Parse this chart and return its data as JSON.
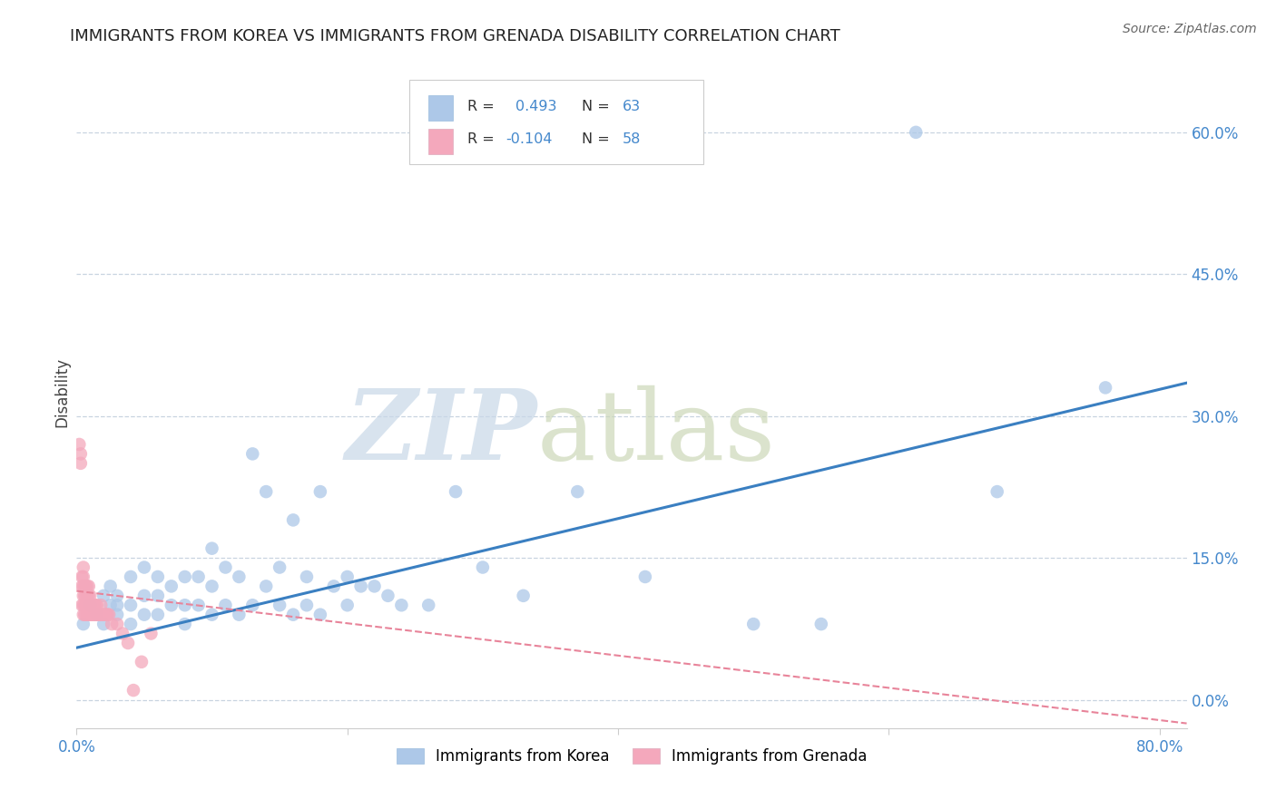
{
  "title": "IMMIGRANTS FROM KOREA VS IMMIGRANTS FROM GRENADA DISABILITY CORRELATION CHART",
  "source": "Source: ZipAtlas.com",
  "ylabel": "Disability",
  "xlim": [
    0.0,
    0.82
  ],
  "ylim": [
    -0.03,
    0.68
  ],
  "yticks": [
    0.0,
    0.15,
    0.3,
    0.45,
    0.6
  ],
  "ytick_labels": [
    "0.0%",
    "15.0%",
    "30.0%",
    "45.0%",
    "60.0%"
  ],
  "xtick_positions": [
    0.0,
    0.2,
    0.4,
    0.6,
    0.8
  ],
  "xtick_labels": [
    "0.0%",
    "",
    "",
    "",
    "80.0%"
  ],
  "korea_R": 0.493,
  "korea_N": 63,
  "grenada_R": -0.104,
  "grenada_N": 58,
  "korea_color": "#adc8e8",
  "grenada_color": "#f4a8bc",
  "korea_line_color": "#3a7fc1",
  "grenada_line_color": "#e8849a",
  "background_color": "#ffffff",
  "grid_color": "#c8d4e0",
  "tick_color": "#4488cc",
  "korea_scatter_x": [
    0.005,
    0.01,
    0.015,
    0.02,
    0.02,
    0.025,
    0.025,
    0.03,
    0.03,
    0.03,
    0.04,
    0.04,
    0.04,
    0.05,
    0.05,
    0.05,
    0.06,
    0.06,
    0.06,
    0.07,
    0.07,
    0.08,
    0.08,
    0.08,
    0.09,
    0.09,
    0.1,
    0.1,
    0.1,
    0.11,
    0.11,
    0.12,
    0.12,
    0.13,
    0.13,
    0.14,
    0.14,
    0.15,
    0.15,
    0.16,
    0.16,
    0.17,
    0.17,
    0.18,
    0.18,
    0.19,
    0.2,
    0.2,
    0.21,
    0.22,
    0.23,
    0.24,
    0.26,
    0.28,
    0.3,
    0.33,
    0.37,
    0.42,
    0.5,
    0.55,
    0.62,
    0.68,
    0.76
  ],
  "korea_scatter_y": [
    0.08,
    0.1,
    0.09,
    0.08,
    0.11,
    0.1,
    0.12,
    0.09,
    0.1,
    0.11,
    0.08,
    0.1,
    0.13,
    0.09,
    0.11,
    0.14,
    0.09,
    0.11,
    0.13,
    0.1,
    0.12,
    0.08,
    0.1,
    0.13,
    0.1,
    0.13,
    0.09,
    0.12,
    0.16,
    0.1,
    0.14,
    0.09,
    0.13,
    0.1,
    0.26,
    0.22,
    0.12,
    0.1,
    0.14,
    0.09,
    0.19,
    0.1,
    0.13,
    0.09,
    0.22,
    0.12,
    0.1,
    0.13,
    0.12,
    0.12,
    0.11,
    0.1,
    0.1,
    0.22,
    0.14,
    0.11,
    0.22,
    0.13,
    0.08,
    0.08,
    0.6,
    0.22,
    0.33
  ],
  "grenada_scatter_x": [
    0.002,
    0.003,
    0.003,
    0.004,
    0.004,
    0.004,
    0.005,
    0.005,
    0.005,
    0.005,
    0.005,
    0.005,
    0.006,
    0.006,
    0.006,
    0.006,
    0.007,
    0.007,
    0.007,
    0.007,
    0.008,
    0.008,
    0.008,
    0.008,
    0.009,
    0.009,
    0.009,
    0.009,
    0.01,
    0.01,
    0.01,
    0.011,
    0.011,
    0.012,
    0.012,
    0.013,
    0.013,
    0.014,
    0.014,
    0.015,
    0.015,
    0.016,
    0.017,
    0.018,
    0.018,
    0.019,
    0.02,
    0.021,
    0.022,
    0.023,
    0.024,
    0.026,
    0.03,
    0.034,
    0.038,
    0.042,
    0.048,
    0.055
  ],
  "grenada_scatter_y": [
    0.27,
    0.26,
    0.25,
    0.1,
    0.12,
    0.13,
    0.09,
    0.1,
    0.11,
    0.12,
    0.13,
    0.14,
    0.09,
    0.1,
    0.11,
    0.12,
    0.09,
    0.1,
    0.11,
    0.12,
    0.09,
    0.1,
    0.11,
    0.12,
    0.09,
    0.1,
    0.11,
    0.12,
    0.09,
    0.1,
    0.11,
    0.09,
    0.1,
    0.09,
    0.1,
    0.09,
    0.1,
    0.09,
    0.1,
    0.09,
    0.1,
    0.09,
    0.09,
    0.09,
    0.1,
    0.09,
    0.09,
    0.09,
    0.09,
    0.09,
    0.09,
    0.08,
    0.08,
    0.07,
    0.06,
    0.01,
    0.04,
    0.07
  ],
  "korea_line_x0": 0.0,
  "korea_line_x1": 0.82,
  "korea_line_y0": 0.055,
  "korea_line_y1": 0.335,
  "grenada_line_x0": 0.0,
  "grenada_line_x1": 0.82,
  "grenada_line_y0": 0.115,
  "grenada_line_y1": -0.025
}
